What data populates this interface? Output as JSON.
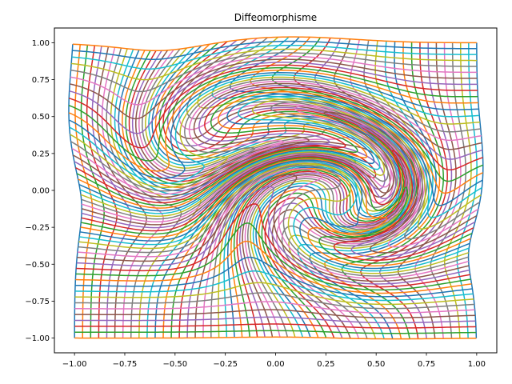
{
  "chart_data": {
    "type": "line",
    "title": "Diffeomorphisme",
    "xlabel": "",
    "ylabel": "",
    "xlim": [
      -1.1,
      1.1
    ],
    "ylim": [
      -1.1,
      1.1
    ],
    "xticks": [
      -1.0,
      -0.75,
      -0.5,
      -0.25,
      0.0,
      0.25,
      0.5,
      0.75,
      1.0
    ],
    "yticks": [
      -1.0,
      -0.75,
      -0.5,
      -0.25,
      0.0,
      0.25,
      0.5,
      0.75,
      1.0
    ],
    "xtick_labels": [
      "−1.00",
      "−0.75",
      "−0.50",
      "−0.25",
      "0.00",
      "0.25",
      "0.50",
      "0.75",
      "1.00"
    ],
    "ytick_labels": [
      "−1.00",
      "−0.75",
      "−0.50",
      "−0.25",
      "0.00",
      "0.25",
      "0.50",
      "0.75",
      "1.00"
    ],
    "grid": false,
    "legend": "none",
    "grid_lines_per_direction": 51,
    "domain": [
      -1.0,
      1.0
    ],
    "deformation": {
      "kind": "two-vortex swirl",
      "vortices": [
        {
          "cx": -0.2,
          "cy": 0.25,
          "angle": 3.0,
          "sigma": 0.33
        },
        {
          "cx": 0.3,
          "cy": -0.1,
          "angle": -3.0,
          "sigma": 0.3
        }
      ]
    },
    "color_cycle": [
      "#1f77b4",
      "#ff7f0e",
      "#2ca02c",
      "#d62728",
      "#9467bd",
      "#8c564b",
      "#e377c2",
      "#7f7f7f",
      "#bcbd22",
      "#17becf"
    ]
  }
}
